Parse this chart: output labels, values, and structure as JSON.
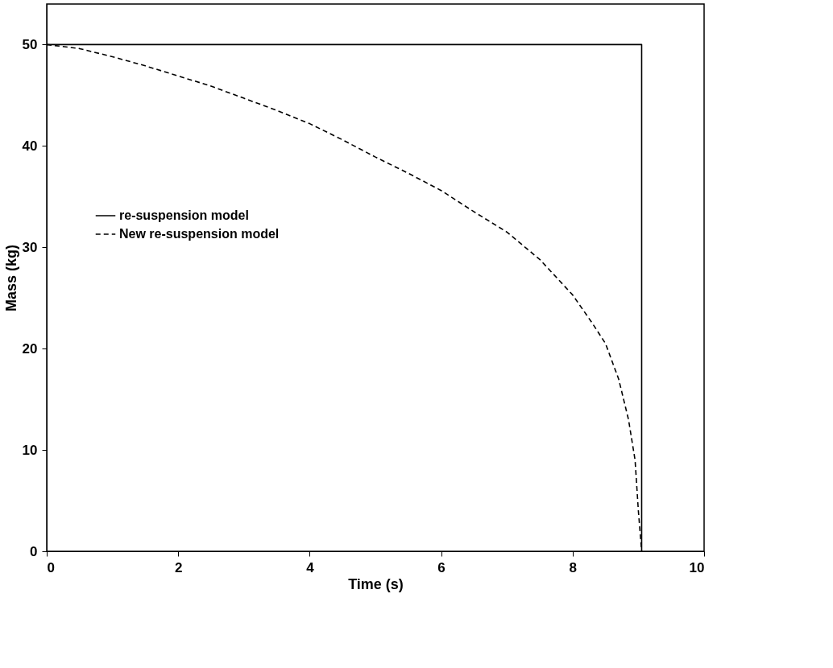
{
  "chart_data": {
    "type": "line",
    "xlabel": "Time (s)",
    "ylabel": "Mass (kg)",
    "xlim": [
      0,
      10
    ],
    "ylim": [
      0,
      54
    ],
    "xticks": [
      0,
      2,
      4,
      6,
      8,
      10
    ],
    "yticks": [
      0,
      10,
      20,
      30,
      40,
      50
    ],
    "grid": false,
    "legend": "left",
    "marker": "none",
    "series": [
      {
        "name": "re-suspension model",
        "color": "#000000",
        "line_style": "solid",
        "x": [
          0,
          9.05,
          9.05
        ],
        "values": [
          50,
          50,
          0
        ]
      },
      {
        "name": "New re-suspension model",
        "color": "#000000",
        "line_style": "dashed",
        "x": [
          0,
          0.5,
          1,
          1.5,
          2,
          2.5,
          3,
          3.5,
          4,
          4.5,
          5,
          5.5,
          6,
          6.5,
          7,
          7.5,
          8,
          8.3,
          8.5,
          8.7,
          8.85,
          8.95,
          9.0,
          9.05
        ],
        "values": [
          50,
          49.6,
          48.8,
          47.9,
          46.9,
          45.9,
          44.7,
          43.5,
          42.2,
          40.6,
          38.9,
          37.3,
          35.6,
          33.5,
          31.5,
          28.8,
          25.3,
          22.5,
          20.5,
          17,
          13,
          9,
          4,
          0
        ]
      }
    ]
  }
}
